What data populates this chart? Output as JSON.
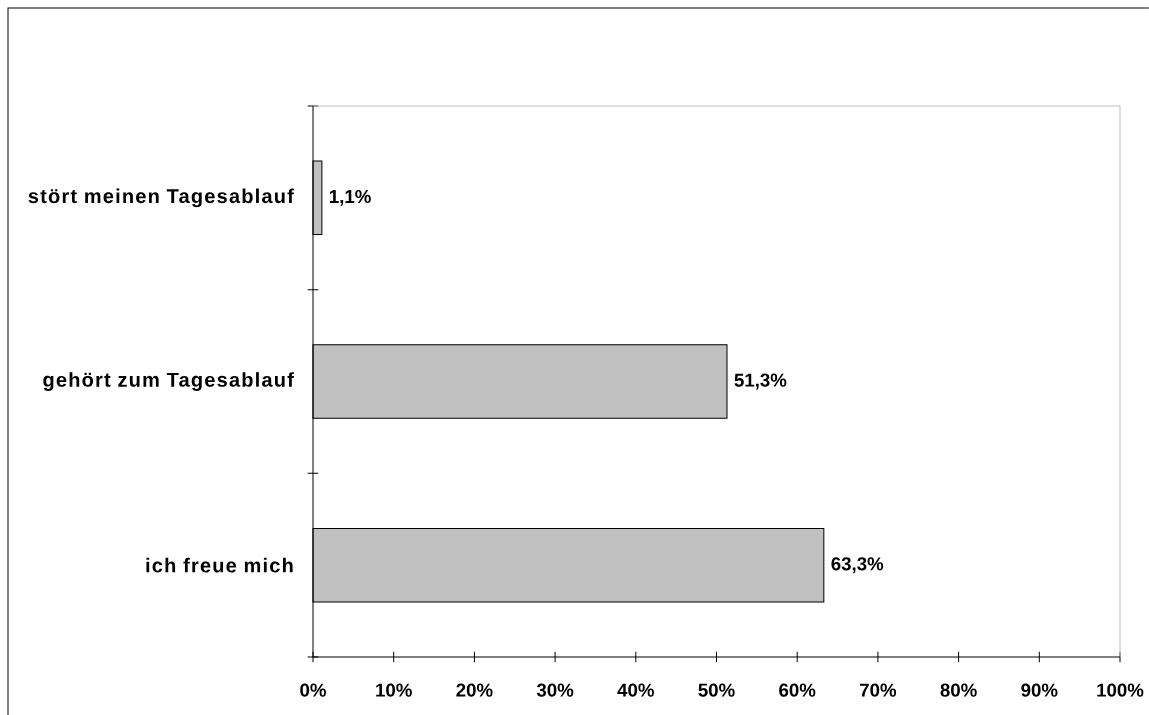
{
  "chart_data": {
    "type": "bar",
    "orientation": "horizontal",
    "categories": [
      "stört meinen Tagesablauf",
      "gehört zum Tagesablauf",
      "ich freue mich"
    ],
    "values": [
      1.1,
      51.3,
      63.3
    ],
    "color": "#c0c0c0",
    "value_labels": [
      "1,1%",
      "51,3%",
      "63,3%"
    ],
    "xlim": [
      0,
      100
    ],
    "xticks": [
      {
        "value": 0,
        "label": "0%"
      },
      {
        "value": 10,
        "label": "10%"
      },
      {
        "value": 20,
        "label": "20%"
      },
      {
        "value": 30,
        "label": "30%"
      },
      {
        "value": 40,
        "label": "40%"
      },
      {
        "value": 50,
        "label": "50%"
      },
      {
        "value": 60,
        "label": "60%"
      },
      {
        "value": 70,
        "label": "70%"
      },
      {
        "value": 80,
        "label": "80%"
      },
      {
        "value": 90,
        "label": "90%"
      },
      {
        "value": 100,
        "label": "100%"
      }
    ]
  }
}
